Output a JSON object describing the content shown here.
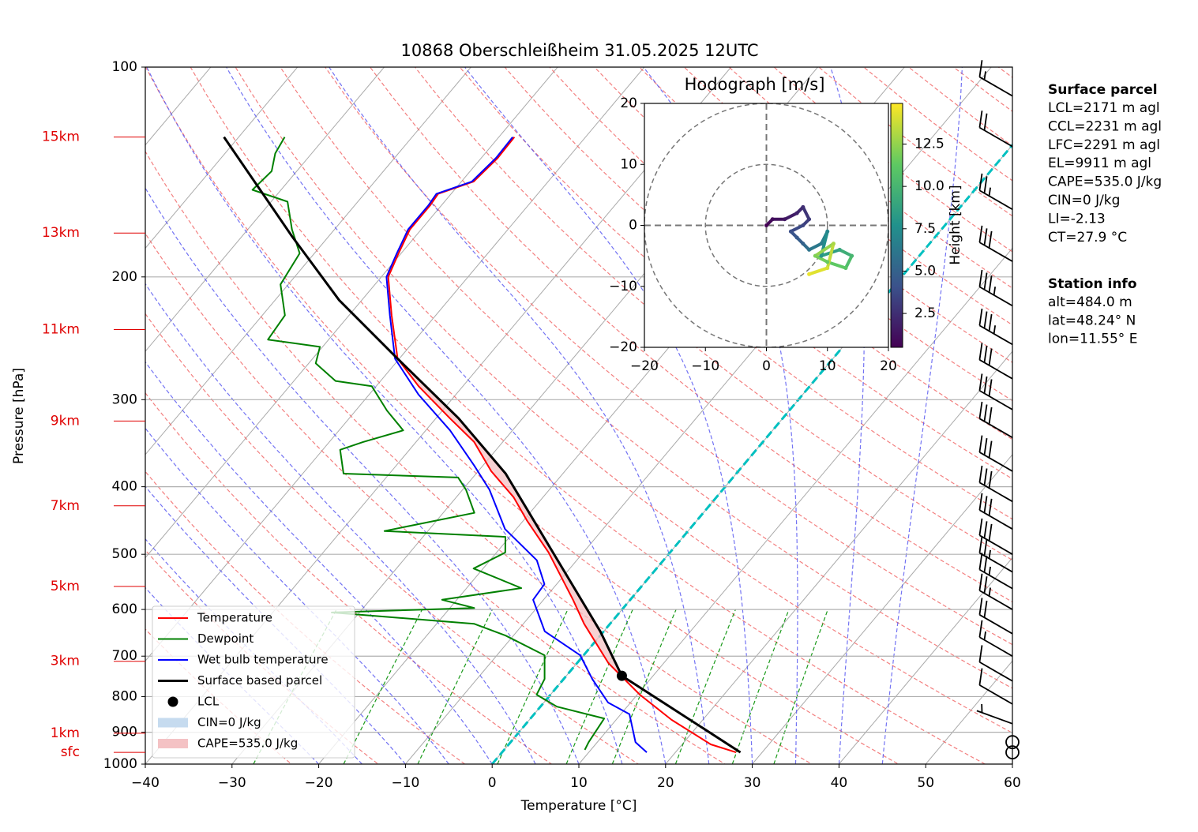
{
  "chart_data": {
    "type": "skewt",
    "title": "10868 Oberschleißheim 31.05.2025 12UTC",
    "xlabel": "Temperature [°C]",
    "ylabel": "Pressure [hPa]",
    "xlim": [
      -40,
      60
    ],
    "ylim": [
      1000,
      100
    ],
    "xticks": [
      {
        "value": -40,
        "label": "−40"
      },
      {
        "value": -30,
        "label": "−30"
      },
      {
        "value": -20,
        "label": "−20"
      },
      {
        "value": -10,
        "label": "−10"
      },
      0,
      10,
      20,
      30,
      40,
      50,
      60
    ],
    "yticks": [
      100,
      200,
      300,
      400,
      500,
      600,
      700,
      800,
      900,
      1000
    ],
    "grid": true,
    "height_labels": [
      {
        "value": 962,
        "label": "sfc"
      },
      {
        "value": 903,
        "label": "1km"
      },
      {
        "value": 712,
        "label": "3km"
      },
      {
        "value": 556,
        "label": "5km"
      },
      {
        "value": 426,
        "label": "7km"
      },
      {
        "value": 322,
        "label": "9km"
      },
      {
        "value": 238,
        "label": "11km"
      },
      {
        "value": 173,
        "label": "13km"
      },
      {
        "value": 126,
        "label": "15km"
      }
    ],
    "series": [
      {
        "name": "Temperature",
        "color": "#ff0000",
        "pressure": [
          962,
          937,
          864,
          795,
          716,
          629,
          581,
          542,
          497,
          448,
          414,
          380,
          345,
          319,
          287,
          262,
          227,
          200,
          185,
          171,
          158,
          152,
          146,
          135,
          126
        ],
        "values": [
          27.0,
          23.3,
          16.4,
          10.3,
          3.6,
          -3.0,
          -6.6,
          -9.9,
          -14.0,
          -19.5,
          -23.4,
          -28.5,
          -33.3,
          -38.4,
          -45.1,
          -50.2,
          -55.1,
          -59.2,
          -60.3,
          -61.3,
          -61.3,
          -61.5,
          -58.6,
          -58.1,
          -58.2
        ]
      },
      {
        "name": "Dewpoint",
        "color": "#008000",
        "pressure": [
          954,
          930,
          860,
          827,
          795,
          755,
          698,
          654,
          629,
          606,
          597,
          581,
          559,
          524,
          497,
          472,
          463,
          436,
          404,
          388,
          383,
          354,
          345,
          332,
          311,
          287,
          282,
          266,
          252,
          246,
          227,
          205,
          185,
          171,
          156,
          150,
          141,
          133,
          126
        ],
        "values": [
          9.3,
          9.0,
          8.5,
          1.9,
          -1.6,
          -2.2,
          -4.5,
          -10.9,
          -15.7,
          -33.2,
          -17.2,
          -21.7,
          -13.7,
          -21.1,
          -19.0,
          -20.5,
          -35.0,
          -26.4,
          -29.6,
          -31.7,
          -45.3,
          -48.0,
          -46.1,
          -42.6,
          -46.4,
          -50.5,
          -55.2,
          -59.2,
          -60.3,
          -67.0,
          -67.4,
          -70.9,
          -71.7,
          -74.9,
          -78.1,
          -83.3,
          -82.9,
          -84.2,
          -84.7
        ]
      },
      {
        "name": "Wet bulb temperature",
        "color": "#0000ff",
        "pressure": [
          962,
          930,
          848,
          816,
          755,
          698,
          645,
          581,
          552,
          510,
          460,
          404,
          373,
          332,
          295,
          262,
          227,
          200,
          185,
          171,
          158,
          152,
          146,
          135,
          126
        ],
        "values": [
          16.7,
          14.4,
          11.0,
          7.4,
          3.3,
          -0.4,
          -6.8,
          -11.2,
          -11.4,
          -14.6,
          -21.3,
          -26.9,
          -31.0,
          -37.2,
          -44.3,
          -50.5,
          -55.3,
          -59.4,
          -60.5,
          -61.5,
          -61.5,
          -61.7,
          -58.8,
          -58.3,
          -58.4
        ]
      },
      {
        "name": "Surface based parcel",
        "color": "#000000",
        "pressure": [
          962,
          747,
          645,
          497,
          383,
          319,
          262,
          216,
          175,
          126
        ],
        "values": [
          27.5,
          6.4,
          -0.4,
          -13.5,
          -26.6,
          -37.4,
          -50.2,
          -62.6,
          -74.2,
          -91.7
        ]
      }
    ],
    "lcl": {
      "name": "LCL",
      "color": "#000000",
      "pressure": 747,
      "value": 6.4
    },
    "shading": [
      {
        "name": "CIN=0 J/kg",
        "color": "#c6dbef"
      },
      {
        "name": "CAPE=535.0 J/kg",
        "color": "#f4c2c4"
      }
    ],
    "wind_barbs": {
      "pressure": [
        962,
        930,
        875,
        820,
        760,
        700,
        650,
        600,
        560,
        530,
        500,
        460,
        420,
        380,
        340,
        310,
        280,
        250,
        220,
        190,
        160,
        130,
        110
      ],
      "speed": [
        0,
        0,
        5,
        10,
        10,
        15,
        20,
        25,
        25,
        25,
        30,
        30,
        30,
        30,
        30,
        30,
        30,
        35,
        35,
        30,
        25,
        20,
        15
      ],
      "direction": [
        0,
        0,
        290,
        300,
        300,
        300,
        300,
        300,
        300,
        300,
        300,
        300,
        300,
        300,
        300,
        300,
        300,
        300,
        300,
        300,
        300,
        300,
        300
      ]
    },
    "hodograph": {
      "title": "Hodograph [m/s]",
      "u": [
        0,
        1,
        3,
        5,
        6,
        7,
        6,
        4,
        5,
        6,
        7,
        9,
        10,
        9,
        12,
        14,
        13,
        10,
        8,
        11,
        10,
        7
      ],
      "v": [
        0,
        1,
        1,
        2,
        3,
        1,
        0,
        -1,
        -2,
        -3,
        -4,
        -3,
        -1,
        -5,
        -4,
        -5,
        -7,
        -6,
        -5,
        -3,
        -7,
        -8
      ],
      "height": [
        0.5,
        1,
        1.5,
        2,
        2.5,
        3,
        3.5,
        4,
        4.5,
        5,
        6,
        6.5,
        7,
        8,
        9,
        10,
        11,
        11.5,
        12,
        13,
        14,
        14.5
      ],
      "xlim": [
        -20,
        20
      ],
      "ylim": [
        -20,
        20
      ],
      "xticks": [
        {
          "value": -20,
          "label": "−20"
        },
        {
          "value": -10,
          "label": "−10"
        },
        0,
        10,
        20
      ],
      "yticks": [
        {
          "value": -20,
          "label": "−20"
        },
        {
          "value": -10,
          "label": "−10"
        },
        0,
        10,
        20
      ],
      "colorbar": {
        "label": "Height [km]",
        "clim": [
          0.5,
          14.9
        ],
        "ticks": [
          2.5,
          {
            "value": 5,
            "label": "5.0"
          },
          7.5,
          {
            "value": 10,
            "label": "10.0"
          },
          12.5
        ]
      }
    },
    "info": {
      "surface_parcel": {
        "title": "Surface parcel",
        "lines": [
          "LCL=2171 m agl",
          "CCL=2231 m agl",
          "LFC=2291 m agl",
          "EL=9911 m agl",
          "CAPE=535.0 J/kg",
          "CIN=0 J/kg",
          "LI=-2.13",
          "CT=27.9 °C"
        ]
      },
      "station": {
        "title": "Station info",
        "lines": [
          "alt=484.0 m",
          "lat=48.24° N",
          "lon=11.55° E"
        ]
      }
    }
  }
}
